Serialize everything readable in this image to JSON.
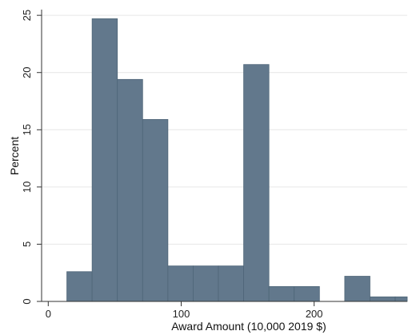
{
  "chart_data": {
    "type": "bar",
    "title": "",
    "xlabel": "Award Amount (10,000 2019 $)",
    "ylabel": "Percent",
    "xlim": [
      -5,
      270
    ],
    "ylim": [
      0,
      25.5
    ],
    "xticks": [
      0,
      100,
      200
    ],
    "yticks": [
      0,
      5,
      10,
      15,
      20,
      25
    ],
    "grid": "horizontal",
    "bar_color": "#62788c",
    "bins": [
      {
        "x0": 14,
        "x1": 33,
        "value": 2.6
      },
      {
        "x0": 33,
        "x1": 52,
        "value": 24.7
      },
      {
        "x0": 52,
        "x1": 71,
        "value": 19.4
      },
      {
        "x0": 71,
        "x1": 90,
        "value": 15.9
      },
      {
        "x0": 90,
        "x1": 109,
        "value": 3.1
      },
      {
        "x0": 109,
        "x1": 128,
        "value": 3.1
      },
      {
        "x0": 128,
        "x1": 147,
        "value": 3.1
      },
      {
        "x0": 147,
        "x1": 166,
        "value": 20.7
      },
      {
        "x0": 166,
        "x1": 185,
        "value": 1.3
      },
      {
        "x0": 185,
        "x1": 204,
        "value": 1.3
      },
      {
        "x0": 204,
        "x1": 223,
        "value": 0
      },
      {
        "x0": 223,
        "x1": 242,
        "value": 2.2
      },
      {
        "x0": 242,
        "x1": 261,
        "value": 0.4
      },
      {
        "x0": 261,
        "x1": 270,
        "value": 0.4
      }
    ]
  }
}
